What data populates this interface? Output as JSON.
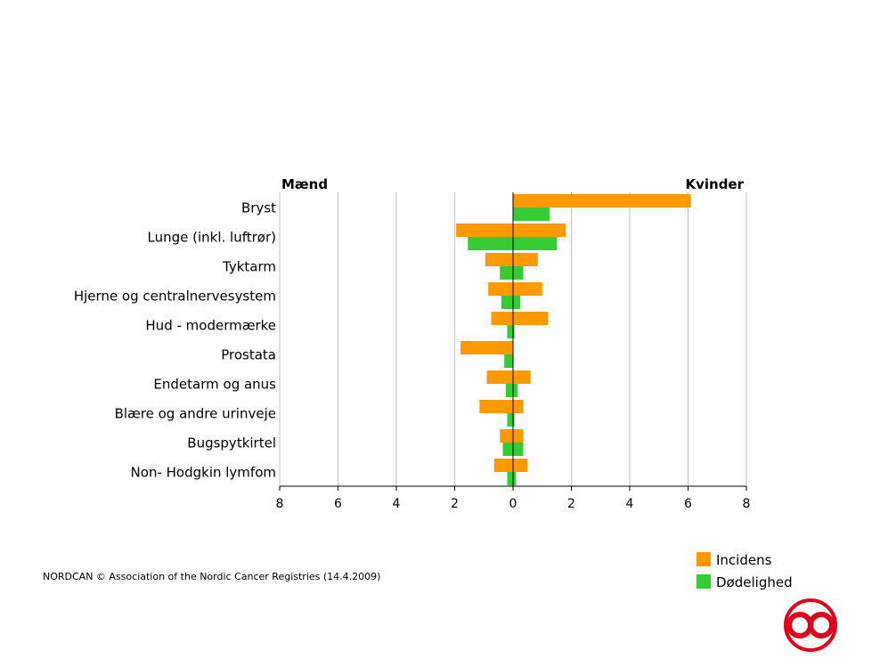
{
  "chart_data": {
    "type": "bar",
    "orientation": "horizontal-butterfly",
    "left_header": "Mænd",
    "right_header": "Kvinder",
    "categories": [
      "Bryst",
      "Lunge (inkl. luftrør)",
      "Tyktarm",
      "Hjerne og centralnervesystem",
      "Hud - modermærke",
      "Prostata",
      "Endetarm og anus",
      "Blære og andre urinveje",
      "Bugspytkirtel",
      "Non- Hodgkin lymfom"
    ],
    "series": [
      {
        "name": "Incidens",
        "color": "#FF9900",
        "men": [
          0.0,
          1.95,
          0.95,
          0.85,
          0.75,
          1.8,
          0.9,
          1.15,
          0.45,
          0.65
        ],
        "women": [
          6.1,
          1.8,
          0.85,
          1.0,
          1.2,
          0.0,
          0.6,
          0.35,
          0.35,
          0.5
        ]
      },
      {
        "name": "Dødelighed",
        "color": "#33CC33",
        "men": [
          0.0,
          1.55,
          0.45,
          0.4,
          0.2,
          0.3,
          0.25,
          0.2,
          0.35,
          0.2
        ],
        "women": [
          1.25,
          1.5,
          0.35,
          0.25,
          0.05,
          0.0,
          0.15,
          0.05,
          0.35,
          0.1
        ]
      }
    ],
    "xlim": [
      -8,
      8
    ],
    "x_ticks": [
      8,
      6,
      4,
      2,
      0,
      2,
      4,
      6,
      8
    ],
    "grid": true,
    "legend_position": "bottom-right"
  },
  "footer": {
    "source": "NORDCAN © Association of the Nordic Cancer Registries (14.4.2009)"
  },
  "colors": {
    "grid": "#C0C0C0",
    "axis": "#000000",
    "logo": "#E3001B"
  }
}
